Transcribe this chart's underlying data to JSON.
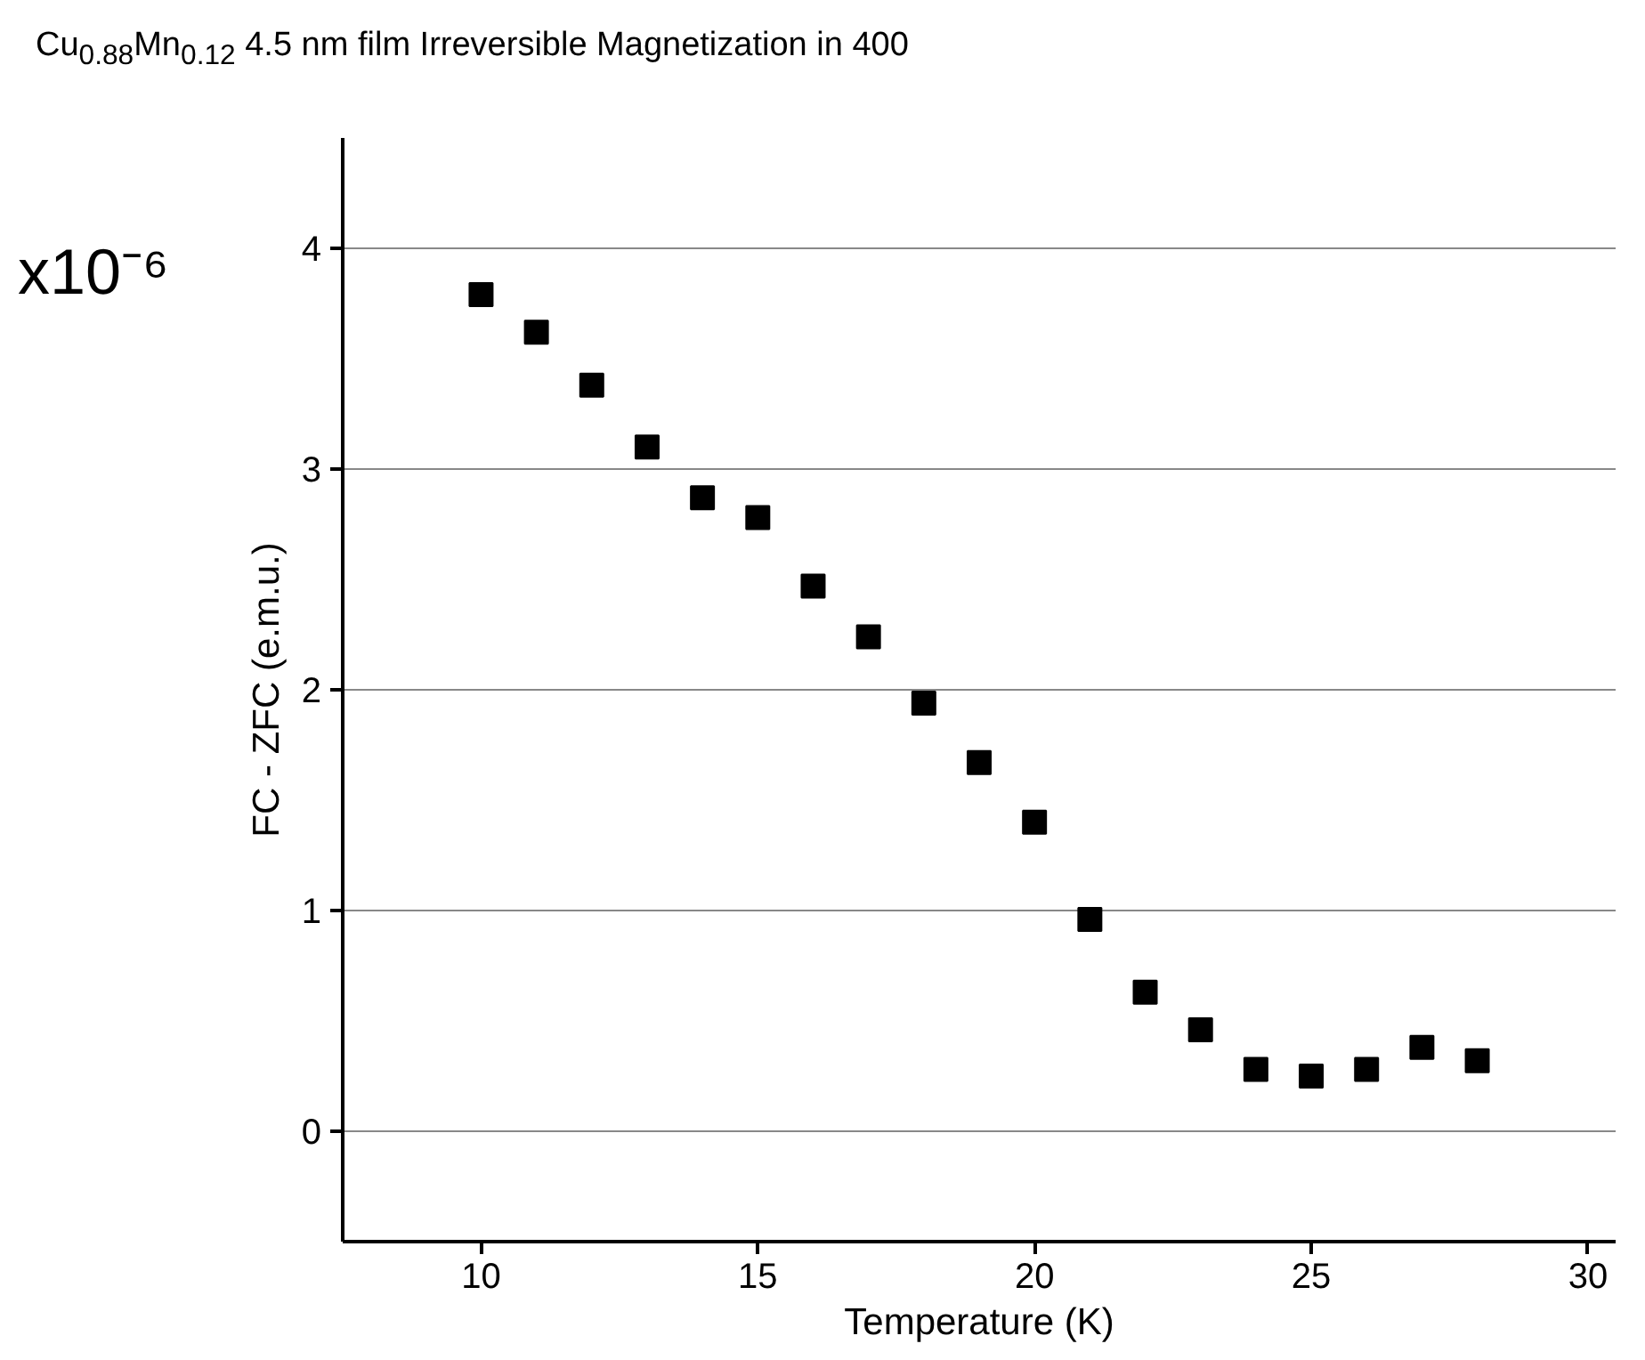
{
  "chart_data": {
    "type": "scatter",
    "title": "Cu$_{0.88}$Mn$_{0.12}$ 4.5 nm film Irreversible Magnetization in 400",
    "xlabel": "Temperature (K)",
    "ylabel": "FC - ZFC (e.m.u.)",
    "annotations": [
      "x10⁻⁶"
    ],
    "x": [
      10,
      11,
      12,
      13,
      14,
      15,
      16,
      17,
      18,
      19,
      20,
      21,
      22,
      23,
      24,
      25,
      26,
      27,
      28
    ],
    "series": [
      {
        "color": "#000000",
        "values": [
          3.79,
          3.62,
          3.38,
          3.1,
          2.87,
          2.78,
          2.47,
          2.24,
          1.94,
          1.67,
          1.4,
          0.96,
          0.63,
          0.46,
          0.28,
          0.25,
          0.28,
          0.38,
          0.32
        ]
      }
    ],
    "xlim": [
      7.5,
      30.5
    ],
    "ylim": [
      -0.5,
      4.5
    ],
    "xticks": [
      10,
      15,
      20,
      25,
      30
    ],
    "yticks": [
      0,
      1,
      2,
      3,
      4
    ],
    "grid": "y",
    "marker": "square"
  }
}
